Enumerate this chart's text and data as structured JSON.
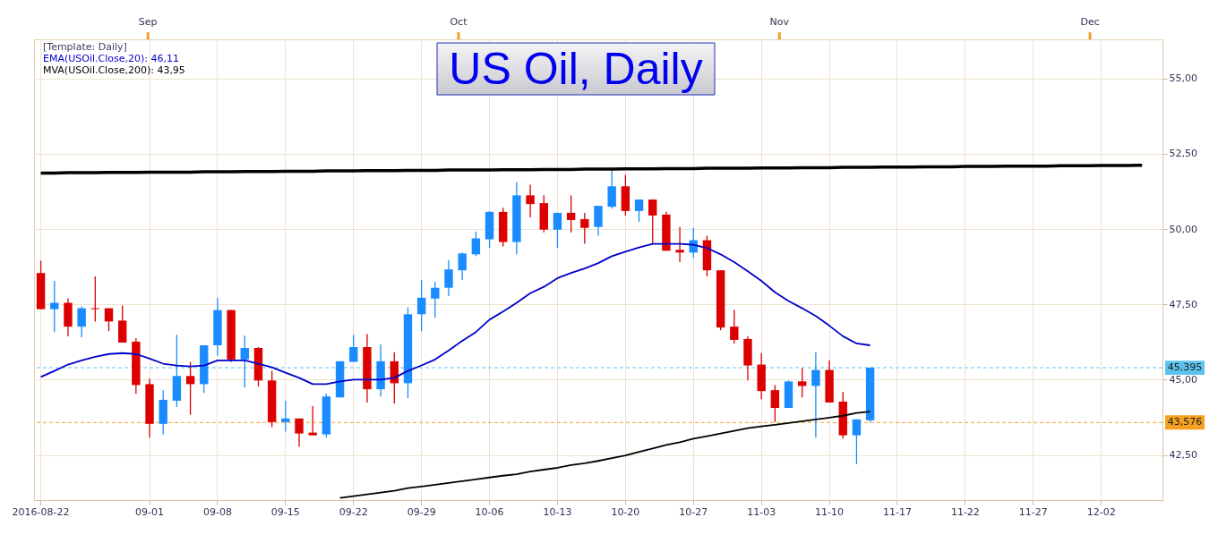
{
  "chart_data": {
    "type": "candlestick",
    "title": "US Oil, Daily",
    "annotations": [
      "[Template: Daily]"
    ],
    "categories": [
      "2016-08-22",
      null,
      null,
      null,
      null,
      null,
      null,
      null,
      "09-01",
      null,
      null,
      null,
      null,
      "09-08",
      null,
      null,
      null,
      null,
      "09-15",
      null,
      null,
      null,
      null,
      "09-22",
      null,
      null,
      null,
      null,
      "09-29",
      null,
      null,
      null,
      null,
      "10-06",
      null,
      null,
      null,
      null,
      "10-13",
      null,
      null,
      null,
      null,
      "10-20",
      null,
      null,
      null,
      null,
      "10-27",
      null,
      null,
      null,
      null,
      "11-03",
      null,
      null,
      null,
      null,
      "11-10",
      null,
      null,
      null,
      null,
      "11-17",
      null,
      null,
      null,
      null,
      "11-22",
      null,
      null,
      null,
      null,
      "11-27",
      null,
      null,
      null,
      null,
      "12-02",
      null,
      null,
      null,
      null
    ],
    "ohlc": [
      [
        48.54,
        48.95,
        47.34,
        47.34
      ],
      [
        47.34,
        48.28,
        46.58,
        47.55
      ],
      [
        47.55,
        47.7,
        46.44,
        46.76
      ],
      [
        46.76,
        47.43,
        46.41,
        47.37
      ],
      [
        47.37,
        48.43,
        46.93,
        47.34
      ],
      [
        47.37,
        47.37,
        46.61,
        46.93
      ],
      [
        46.96,
        47.46,
        46.23,
        46.23
      ],
      [
        46.26,
        46.38,
        44.53,
        44.82
      ],
      [
        44.85,
        45.03,
        43.07,
        43.53
      ],
      [
        43.53,
        44.65,
        43.18,
        44.33
      ],
      [
        44.3,
        46.49,
        44.09,
        45.12
      ],
      [
        45.12,
        45.59,
        43.83,
        44.85
      ],
      [
        44.85,
        46.14,
        44.56,
        46.14
      ],
      [
        46.14,
        47.72,
        45.79,
        47.31
      ],
      [
        47.31,
        47.31,
        45.59,
        45.67
      ],
      [
        45.67,
        46.46,
        44.74,
        46.05
      ],
      [
        46.05,
        46.08,
        44.77,
        44.97
      ],
      [
        44.97,
        45.29,
        43.42,
        43.59
      ],
      [
        43.59,
        44.3,
        43.27,
        43.71
      ],
      [
        43.71,
        43.71,
        42.77,
        43.21
      ],
      [
        43.24,
        44.12,
        43.15,
        43.15
      ],
      [
        43.18,
        44.53,
        43.07,
        44.44
      ],
      [
        44.41,
        45.61,
        44.41,
        45.61
      ],
      [
        45.59,
        46.49,
        45.59,
        46.08
      ],
      [
        46.08,
        46.52,
        44.24,
        44.68
      ],
      [
        44.68,
        46.17,
        44.44,
        45.61
      ],
      [
        45.61,
        45.91,
        44.21,
        44.88
      ],
      [
        44.88,
        47.4,
        44.38,
        47.17
      ],
      [
        47.17,
        48.31,
        46.61,
        47.72
      ],
      [
        47.69,
        48.25,
        47.05,
        48.05
      ],
      [
        48.05,
        48.98,
        47.78,
        48.66
      ],
      [
        48.63,
        49.22,
        48.31,
        49.19
      ],
      [
        49.16,
        49.92,
        49.1,
        49.69
      ],
      [
        49.66,
        50.6,
        49.37,
        50.57
      ],
      [
        50.57,
        50.71,
        49.42,
        49.57
      ],
      [
        49.57,
        51.56,
        49.16,
        51.12
      ],
      [
        51.12,
        51.47,
        50.39,
        50.83
      ],
      [
        50.86,
        51.12,
        49.89,
        49.98
      ],
      [
        49.98,
        50.54,
        49.37,
        50.54
      ],
      [
        50.54,
        51.12,
        49.89,
        50.3
      ],
      [
        50.33,
        50.54,
        49.51,
        50.04
      ],
      [
        50.07,
        50.77,
        49.78,
        50.77
      ],
      [
        50.74,
        51.94,
        50.68,
        51.42
      ],
      [
        51.42,
        51.8,
        50.45,
        50.6
      ],
      [
        50.6,
        50.98,
        50.24,
        50.98
      ],
      [
        50.98,
        50.98,
        49.51,
        50.45
      ],
      [
        50.48,
        50.57,
        49.28,
        49.28
      ],
      [
        49.31,
        50.07,
        48.9,
        49.22
      ],
      [
        49.22,
        50.04,
        49.04,
        49.63
      ],
      [
        49.63,
        49.78,
        48.43,
        48.63
      ],
      [
        48.63,
        48.63,
        46.64,
        46.73
      ],
      [
        46.76,
        47.31,
        46.2,
        46.32
      ],
      [
        46.35,
        46.44,
        44.97,
        45.47
      ],
      [
        45.5,
        45.88,
        44.35,
        44.62
      ],
      [
        44.65,
        44.82,
        43.59,
        44.06
      ],
      [
        44.06,
        44.97,
        44.06,
        44.94
      ],
      [
        44.94,
        45.38,
        44.41,
        44.79
      ],
      [
        44.79,
        45.91,
        43.07,
        45.32
      ],
      [
        45.32,
        45.64,
        44.24,
        44.24
      ],
      [
        44.27,
        44.59,
        43.04,
        43.15
      ],
      [
        43.15,
        43.68,
        42.19,
        43.68
      ],
      [
        43.65,
        45.4,
        43.59,
        45.4
      ],
      null,
      null,
      null,
      null,
      null,
      null,
      null,
      null,
      null,
      null,
      null,
      null,
      null,
      null,
      null,
      null,
      null,
      null,
      null,
      null,
      null
    ],
    "colors": [
      "#dd0000",
      "#1a8cff",
      "#dd0000",
      "#1a8cff",
      "#dd0000",
      "#dd0000",
      "#dd0000",
      "#dd0000",
      "#dd0000",
      "#1a8cff",
      "#1a8cff",
      "#dd0000",
      "#1a8cff",
      "#1a8cff",
      "#dd0000",
      "#1a8cff",
      "#dd0000",
      "#dd0000",
      "#1a8cff",
      "#dd0000",
      "#dd0000",
      "#1a8cff",
      "#1a8cff",
      "#1a8cff",
      "#dd0000",
      "#1a8cff",
      "#dd0000",
      "#1a8cff",
      "#1a8cff",
      "#1a8cff",
      "#1a8cff",
      "#1a8cff",
      "#1a8cff",
      "#1a8cff",
      "#dd0000",
      "#1a8cff",
      "#dd0000",
      "#dd0000",
      "#1a8cff",
      "#dd0000",
      "#dd0000",
      "#1a8cff",
      "#1a8cff",
      "#dd0000",
      "#1a8cff",
      "#dd0000",
      "#dd0000",
      "#dd0000",
      "#1a8cff",
      "#dd0000",
      "#dd0000",
      "#dd0000",
      "#dd0000",
      "#dd0000",
      "#dd0000",
      "#1a8cff",
      "#dd0000",
      "#1a8cff",
      "#dd0000",
      "#dd0000",
      "#1a8cff",
      "#1a8cff",
      null,
      null,
      null,
      null,
      null,
      null,
      null,
      null,
      null,
      null,
      null,
      null,
      null,
      null,
      null,
      null,
      null,
      null,
      null,
      null,
      null
    ],
    "series": [
      {
        "name": "EMA(USOil.Close,20): 46,11",
        "type": "line",
        "color": "#0000cc",
        "values": [
          45.09,
          45.29,
          45.5,
          45.64,
          45.76,
          45.85,
          45.88,
          45.85,
          45.7,
          45.53,
          45.47,
          45.44,
          45.47,
          45.64,
          45.64,
          45.64,
          45.53,
          45.41,
          45.23,
          45.06,
          44.85,
          44.85,
          44.94,
          45.0,
          45.0,
          45.0,
          45.06,
          45.29,
          45.47,
          45.67,
          45.97,
          46.29,
          46.58,
          46.99,
          47.26,
          47.55,
          47.87,
          48.08,
          48.37,
          48.54,
          48.69,
          48.87,
          49.1,
          49.25,
          49.39,
          49.51,
          49.51,
          49.51,
          49.48,
          49.37,
          49.16,
          48.9,
          48.6,
          48.28,
          47.9,
          47.61,
          47.37,
          47.11,
          46.79,
          46.44,
          46.2,
          46.14,
          null,
          null,
          null,
          null,
          null,
          null,
          null,
          null,
          null,
          null,
          null,
          null,
          null,
          null,
          null,
          null,
          null,
          null,
          null,
          null,
          null
        ]
      },
      {
        "name": "MVA(USOil.Close,200): 43,95",
        "type": "line",
        "color": "#000000",
        "values": [
          null,
          null,
          null,
          null,
          null,
          null,
          null,
          null,
          null,
          null,
          null,
          null,
          null,
          null,
          null,
          null,
          null,
          null,
          null,
          null,
          null,
          null,
          41.07,
          41.13,
          41.19,
          41.25,
          41.31,
          41.4,
          41.45,
          41.51,
          41.57,
          41.63,
          41.69,
          41.75,
          41.81,
          41.86,
          41.95,
          42.01,
          42.07,
          42.16,
          42.22,
          42.3,
          42.39,
          42.48,
          42.6,
          42.71,
          42.83,
          42.92,
          43.04,
          43.12,
          43.21,
          43.3,
          43.39,
          43.45,
          43.5,
          43.56,
          43.62,
          43.68,
          43.74,
          43.8,
          43.89,
          43.94,
          null,
          null,
          null,
          null,
          null,
          null,
          null,
          null,
          null,
          null,
          null,
          null,
          null,
          null,
          null,
          null,
          null,
          null,
          null,
          null,
          null
        ]
      },
      {
        "type": "line",
        "color": "#000000",
        "values": [
          51.86,
          51.86,
          51.87,
          51.87,
          51.87,
          51.88,
          51.88,
          51.88,
          51.89,
          51.89,
          51.89,
          51.89,
          51.9,
          51.9,
          51.9,
          51.91,
          51.91,
          51.91,
          51.92,
          51.92,
          51.92,
          51.93,
          51.93,
          51.93,
          51.94,
          51.94,
          51.94,
          51.95,
          51.95,
          51.95,
          51.96,
          51.96,
          51.96,
          51.96,
          51.97,
          51.97,
          51.97,
          51.98,
          51.98,
          51.98,
          51.99,
          51.99,
          51.99,
          52.0,
          52.0,
          52.0,
          52.01,
          52.01,
          52.01,
          52.02,
          52.02,
          52.02,
          52.02,
          52.03,
          52.03,
          52.03,
          52.04,
          52.04,
          52.04,
          52.05,
          52.05,
          52.05,
          52.06,
          52.06,
          52.06,
          52.07,
          52.07,
          52.07,
          52.08,
          52.08,
          52.08,
          52.09,
          52.09,
          52.09,
          52.09,
          52.1,
          52.1,
          52.1,
          52.11,
          52.11,
          52.11,
          52.12,
          null
        ]
      }
    ],
    "ylim": [
      41.0,
      56.3
    ],
    "yticks": [
      {
        "value": 42.5,
        "label": "42,50"
      },
      {
        "value": 45,
        "label": "45,00"
      },
      {
        "value": 47.5,
        "label": "47,50"
      },
      {
        "value": 50,
        "label": "50,00"
      },
      {
        "value": 52.5,
        "label": "52,50"
      },
      {
        "value": 55,
        "label": "55,00"
      }
    ],
    "x2lim": [
      "--08-21",
      "--12-08"
    ],
    "x2ticks": [
      {
        "value": "--09-01",
        "label": "Sep"
      },
      {
        "value": "--10-01",
        "label": "Oct"
      },
      {
        "value": "--11-01",
        "label": "Nov"
      },
      {
        "value": "--12-01",
        "label": "Dec"
      }
    ],
    "ref_lines": [
      {
        "axis": "y",
        "value": 45.395,
        "label": "45,395",
        "color": "#5cc3f0",
        "line_style": "dashed"
      },
      {
        "axis": "y",
        "value": 43.576,
        "label": "43,576",
        "color": "#f4a020",
        "line_style": "dashed"
      }
    ],
    "grid": true,
    "legend": "top left"
  }
}
